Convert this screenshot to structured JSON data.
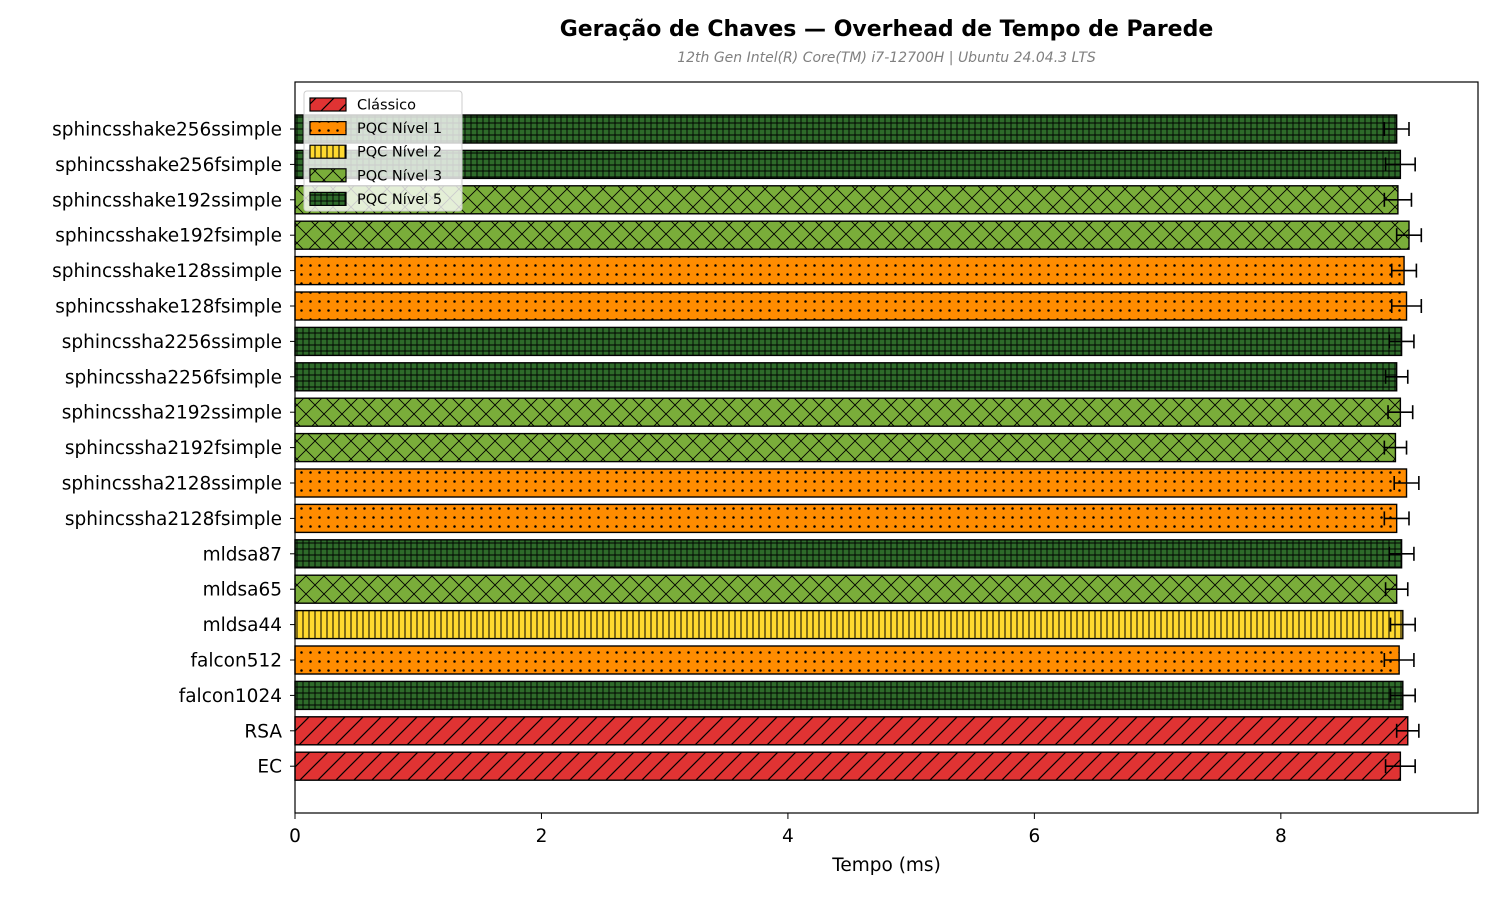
{
  "chart_data": {
    "type": "bar",
    "orientation": "horizontal",
    "title": "Geração de Chaves — Overhead de Tempo de Parede",
    "subtitle": "12th Gen Intel(R) Core(TM) i7-12700H | Ubuntu 24.04.3 LTS",
    "xlabel": "Tempo (ms)",
    "ylabel": "",
    "xlim": [
      0,
      9.6
    ],
    "xticks": [
      0,
      2,
      4,
      6,
      8
    ],
    "grid": false,
    "legend_position": "top-left",
    "groups": [
      {
        "key": "classic",
        "name": "Clássico",
        "color": "#e03333",
        "pattern": "diagonal"
      },
      {
        "key": "l1",
        "name": "PQC Nível 1",
        "color": "#ff8c00",
        "pattern": "dots"
      },
      {
        "key": "l2",
        "name": "PQC Nível 2",
        "color": "#ffd92f",
        "pattern": "vertical"
      },
      {
        "key": "l3",
        "name": "PQC Nível 3",
        "color": "#7aad3a",
        "pattern": "crosshatch"
      },
      {
        "key": "l5",
        "name": "PQC Nível 5",
        "color": "#2e6b2a",
        "pattern": "grid"
      }
    ],
    "bars": [
      {
        "label": "sphincsshake256ssimple",
        "value": 8.94,
        "error": 0.1,
        "group": "l5"
      },
      {
        "label": "sphincsshake256fsimple",
        "value": 8.97,
        "error": 0.12,
        "group": "l5"
      },
      {
        "label": "sphincsshake192ssimple",
        "value": 8.95,
        "error": 0.11,
        "group": "l3"
      },
      {
        "label": "sphincsshake192fsimple",
        "value": 9.04,
        "error": 0.1,
        "group": "l3"
      },
      {
        "label": "sphincsshake128ssimple",
        "value": 9.0,
        "error": 0.1,
        "group": "l1"
      },
      {
        "label": "sphincsshake128fsimple",
        "value": 9.02,
        "error": 0.12,
        "group": "l1"
      },
      {
        "label": "sphincssha2256ssimple",
        "value": 8.98,
        "error": 0.1,
        "group": "l5"
      },
      {
        "label": "sphincssha2256fsimple",
        "value": 8.94,
        "error": 0.09,
        "group": "l5"
      },
      {
        "label": "sphincssha2192ssimple",
        "value": 8.97,
        "error": 0.1,
        "group": "l3"
      },
      {
        "label": "sphincssha2192fsimple",
        "value": 8.93,
        "error": 0.09,
        "group": "l3"
      },
      {
        "label": "sphincssha2128ssimple",
        "value": 9.02,
        "error": 0.1,
        "group": "l1"
      },
      {
        "label": "sphincssha2128fsimple",
        "value": 8.94,
        "error": 0.1,
        "group": "l1"
      },
      {
        "label": "mldsa87",
        "value": 8.98,
        "error": 0.1,
        "group": "l5"
      },
      {
        "label": "mldsa65",
        "value": 8.94,
        "error": 0.09,
        "group": "l3"
      },
      {
        "label": "mldsa44",
        "value": 8.99,
        "error": 0.1,
        "group": "l2"
      },
      {
        "label": "falcon512",
        "value": 8.96,
        "error": 0.12,
        "group": "l1"
      },
      {
        "label": "falcon1024",
        "value": 8.99,
        "error": 0.1,
        "group": "l5"
      },
      {
        "label": "RSA",
        "value": 9.03,
        "error": 0.09,
        "group": "classic"
      },
      {
        "label": "EC",
        "value": 8.97,
        "error": 0.12,
        "group": "classic"
      }
    ]
  }
}
